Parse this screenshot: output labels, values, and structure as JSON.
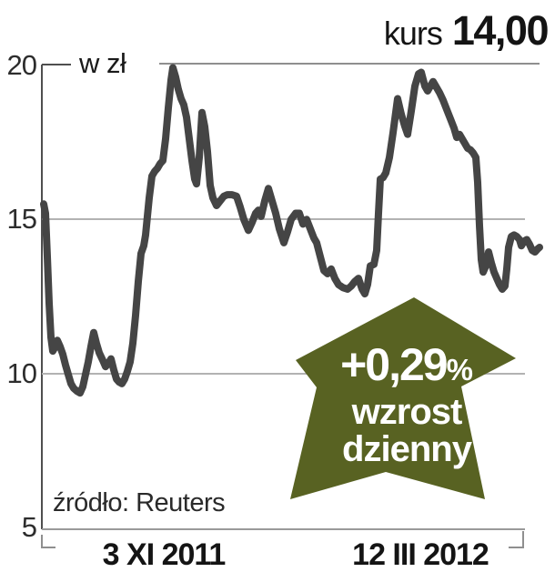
{
  "header": {
    "label": "kurs",
    "value": "14,00"
  },
  "chart": {
    "unit_label": "w zł",
    "y_ticks": [
      "20",
      "15",
      "10",
      "5"
    ],
    "x_start_label": "3 XI 2011",
    "x_end_label": "12 III 2012",
    "source": "źródło: Reuters"
  },
  "badge": {
    "percent_value": "+0,29",
    "percent_sign": "%",
    "line1": "wzrost",
    "line2": "dzienny",
    "color": "#586222",
    "text_color": "#ffffff"
  },
  "chart_data": {
    "type": "line",
    "title": "kurs 14,00",
    "ylabel": "w zł",
    "ylim": [
      5,
      20
    ],
    "y_ticks": [
      20,
      15,
      10,
      5
    ],
    "x_axis": {
      "start": "3 XI 2011",
      "end": "12 III 2012"
    },
    "grid": true,
    "line_color": "#454545",
    "gridline_color": "#b2b2b2",
    "last_price": 14.0,
    "daily_change_percent": 0.29,
    "annotation": "+0,29% wzrost dzienny",
    "source": "Reuters",
    "points": [
      [
        48,
        15.5
      ],
      [
        50,
        15.2
      ],
      [
        52,
        13.8
      ],
      [
        54,
        12.3
      ],
      [
        56,
        11.2
      ],
      [
        58,
        10.75
      ],
      [
        61,
        10.9
      ],
      [
        63,
        11.1
      ],
      [
        66,
        10.9
      ],
      [
        69,
        10.65
      ],
      [
        72,
        10.3
      ],
      [
        75,
        10.0
      ],
      [
        78,
        9.7
      ],
      [
        81,
        9.55
      ],
      [
        85,
        9.45
      ],
      [
        88,
        9.4
      ],
      [
        91,
        9.6
      ],
      [
        94,
        10.0
      ],
      [
        97,
        10.4
      ],
      [
        100,
        10.9
      ],
      [
        103,
        11.35
      ],
      [
        106,
        11.0
      ],
      [
        109,
        10.7
      ],
      [
        113,
        10.45
      ],
      [
        116,
        10.25
      ],
      [
        119,
        10.35
      ],
      [
        122,
        10.5
      ],
      [
        125,
        10.15
      ],
      [
        128,
        9.85
      ],
      [
        131,
        9.75
      ],
      [
        134,
        9.7
      ],
      [
        137,
        9.85
      ],
      [
        140,
        10.1
      ],
      [
        143,
        10.4
      ],
      [
        146,
        11.0
      ],
      [
        149,
        11.9
      ],
      [
        152,
        13.0
      ],
      [
        155,
        13.9
      ],
      [
        158,
        14.15
      ],
      [
        160,
        14.5
      ],
      [
        162,
        15.1
      ],
      [
        164,
        15.7
      ],
      [
        167,
        16.4
      ],
      [
        170,
        16.55
      ],
      [
        173,
        16.65
      ],
      [
        176,
        16.8
      ],
      [
        179,
        16.9
      ],
      [
        182,
        17.6
      ],
      [
        185,
        18.6
      ],
      [
        188,
        19.5
      ],
      [
        190,
        19.9
      ],
      [
        193,
        19.6
      ],
      [
        196,
        19.2
      ],
      [
        199,
        18.9
      ],
      [
        202,
        18.7
      ],
      [
        205,
        18.3
      ],
      [
        208,
        17.6
      ],
      [
        211,
        16.9
      ],
      [
        214,
        16.3
      ],
      [
        216,
        16.15
      ],
      [
        219,
        17.0
      ],
      [
        222,
        18.45
      ],
      [
        225,
        18.0
      ],
      [
        228,
        17.2
      ],
      [
        231,
        16.1
      ],
      [
        234,
        15.7
      ],
      [
        238,
        15.45
      ],
      [
        242,
        15.6
      ],
      [
        246,
        15.75
      ],
      [
        250,
        15.8
      ],
      [
        255,
        15.8
      ],
      [
        260,
        15.75
      ],
      [
        264,
        15.4
      ],
      [
        268,
        15.0
      ],
      [
        273,
        14.65
      ],
      [
        277,
        14.9
      ],
      [
        281,
        15.2
      ],
      [
        284,
        15.3
      ],
      [
        287,
        15.1
      ],
      [
        291,
        15.6
      ],
      [
        295,
        16.0
      ],
      [
        299,
        15.6
      ],
      [
        303,
        15.2
      ],
      [
        307,
        14.7
      ],
      [
        312,
        14.25
      ],
      [
        316,
        14.6
      ],
      [
        320,
        15.0
      ],
      [
        325,
        15.2
      ],
      [
        329,
        15.2
      ],
      [
        333,
        14.85
      ],
      [
        337,
        15.0
      ],
      [
        341,
        14.7
      ],
      [
        345,
        14.4
      ],
      [
        348,
        14.25
      ],
      [
        352,
        13.8
      ],
      [
        356,
        13.35
      ],
      [
        360,
        13.25
      ],
      [
        364,
        13.4
      ],
      [
        368,
        13.1
      ],
      [
        372,
        12.9
      ],
      [
        377,
        12.8
      ],
      [
        382,
        12.75
      ],
      [
        386,
        12.85
      ],
      [
        390,
        13.0
      ],
      [
        394,
        13.1
      ],
      [
        398,
        12.75
      ],
      [
        401,
        12.6
      ],
      [
        404,
        12.9
      ],
      [
        407,
        13.5
      ],
      [
        411,
        13.55
      ],
      [
        414,
        14.0
      ],
      [
        416,
        15.2
      ],
      [
        418,
        16.3
      ],
      [
        421,
        16.35
      ],
      [
        424,
        16.5
      ],
      [
        428,
        17.0
      ],
      [
        432,
        17.8
      ],
      [
        437,
        18.9
      ],
      [
        441,
        18.4
      ],
      [
        445,
        18.0
      ],
      [
        448,
        17.75
      ],
      [
        452,
        18.5
      ],
      [
        456,
        19.3
      ],
      [
        460,
        19.7
      ],
      [
        463,
        19.75
      ],
      [
        467,
        19.3
      ],
      [
        470,
        19.15
      ],
      [
        473,
        19.3
      ],
      [
        476,
        19.45
      ],
      [
        479,
        19.3
      ],
      [
        483,
        19.1
      ],
      [
        487,
        18.85
      ],
      [
        491,
        18.55
      ],
      [
        495,
        18.25
      ],
      [
        499,
        17.95
      ],
      [
        502,
        17.65
      ],
      [
        505,
        17.75
      ],
      [
        508,
        17.6
      ],
      [
        511,
        17.45
      ],
      [
        514,
        17.3
      ],
      [
        517,
        17.25
      ],
      [
        520,
        17.15
      ],
      [
        523,
        17.0
      ],
      [
        525,
        16.2
      ],
      [
        527,
        14.8
      ],
      [
        529,
        13.7
      ],
      [
        531,
        13.3
      ],
      [
        534,
        13.5
      ],
      [
        537,
        13.95
      ],
      [
        540,
        13.6
      ],
      [
        543,
        13.3
      ],
      [
        546,
        13.1
      ],
      [
        549,
        12.9
      ],
      [
        552,
        12.75
      ],
      [
        555,
        12.85
      ],
      [
        557,
        13.4
      ],
      [
        559,
        14.1
      ],
      [
        562,
        14.45
      ],
      [
        565,
        14.5
      ],
      [
        568,
        14.45
      ],
      [
        571,
        14.35
      ],
      [
        573,
        14.15
      ],
      [
        576,
        14.3
      ],
      [
        579,
        14.35
      ],
      [
        582,
        14.2
      ],
      [
        585,
        14.0
      ],
      [
        588,
        13.95
      ],
      [
        591,
        14.05
      ],
      [
        593,
        14.1
      ]
    ]
  }
}
